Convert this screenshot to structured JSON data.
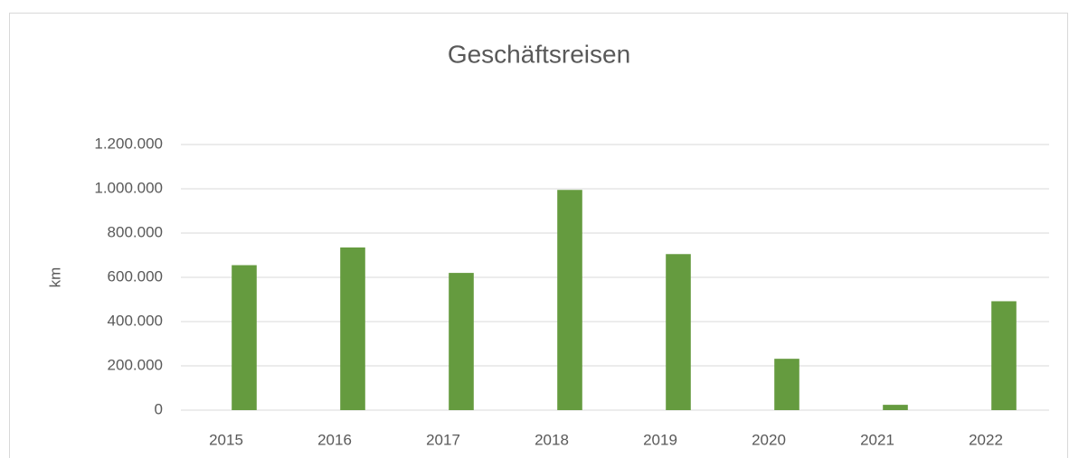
{
  "chart_data": {
    "type": "bar",
    "title": "Geschäftsreisen",
    "y_label": "km",
    "categories": [
      "2015",
      "2016",
      "2017",
      "2018",
      "2019",
      "2020",
      "2021",
      "2022"
    ],
    "values": [
      655000,
      735000,
      620000,
      995000,
      705000,
      232000,
      24000,
      492000
    ],
    "color": "#659b3f",
    "ylim": [
      0,
      1200000
    ],
    "yticks": [
      0,
      {
        "value": 200000,
        "label": "200.000"
      },
      {
        "value": 400000,
        "label": "400.000"
      },
      {
        "value": 600000,
        "label": "600.000"
      },
      {
        "value": 800000,
        "label": "800.000"
      },
      {
        "value": 1000000,
        "label": "1.000.000"
      },
      {
        "value": 1200000,
        "label": "1.200.000"
      }
    ],
    "grid": true
  }
}
